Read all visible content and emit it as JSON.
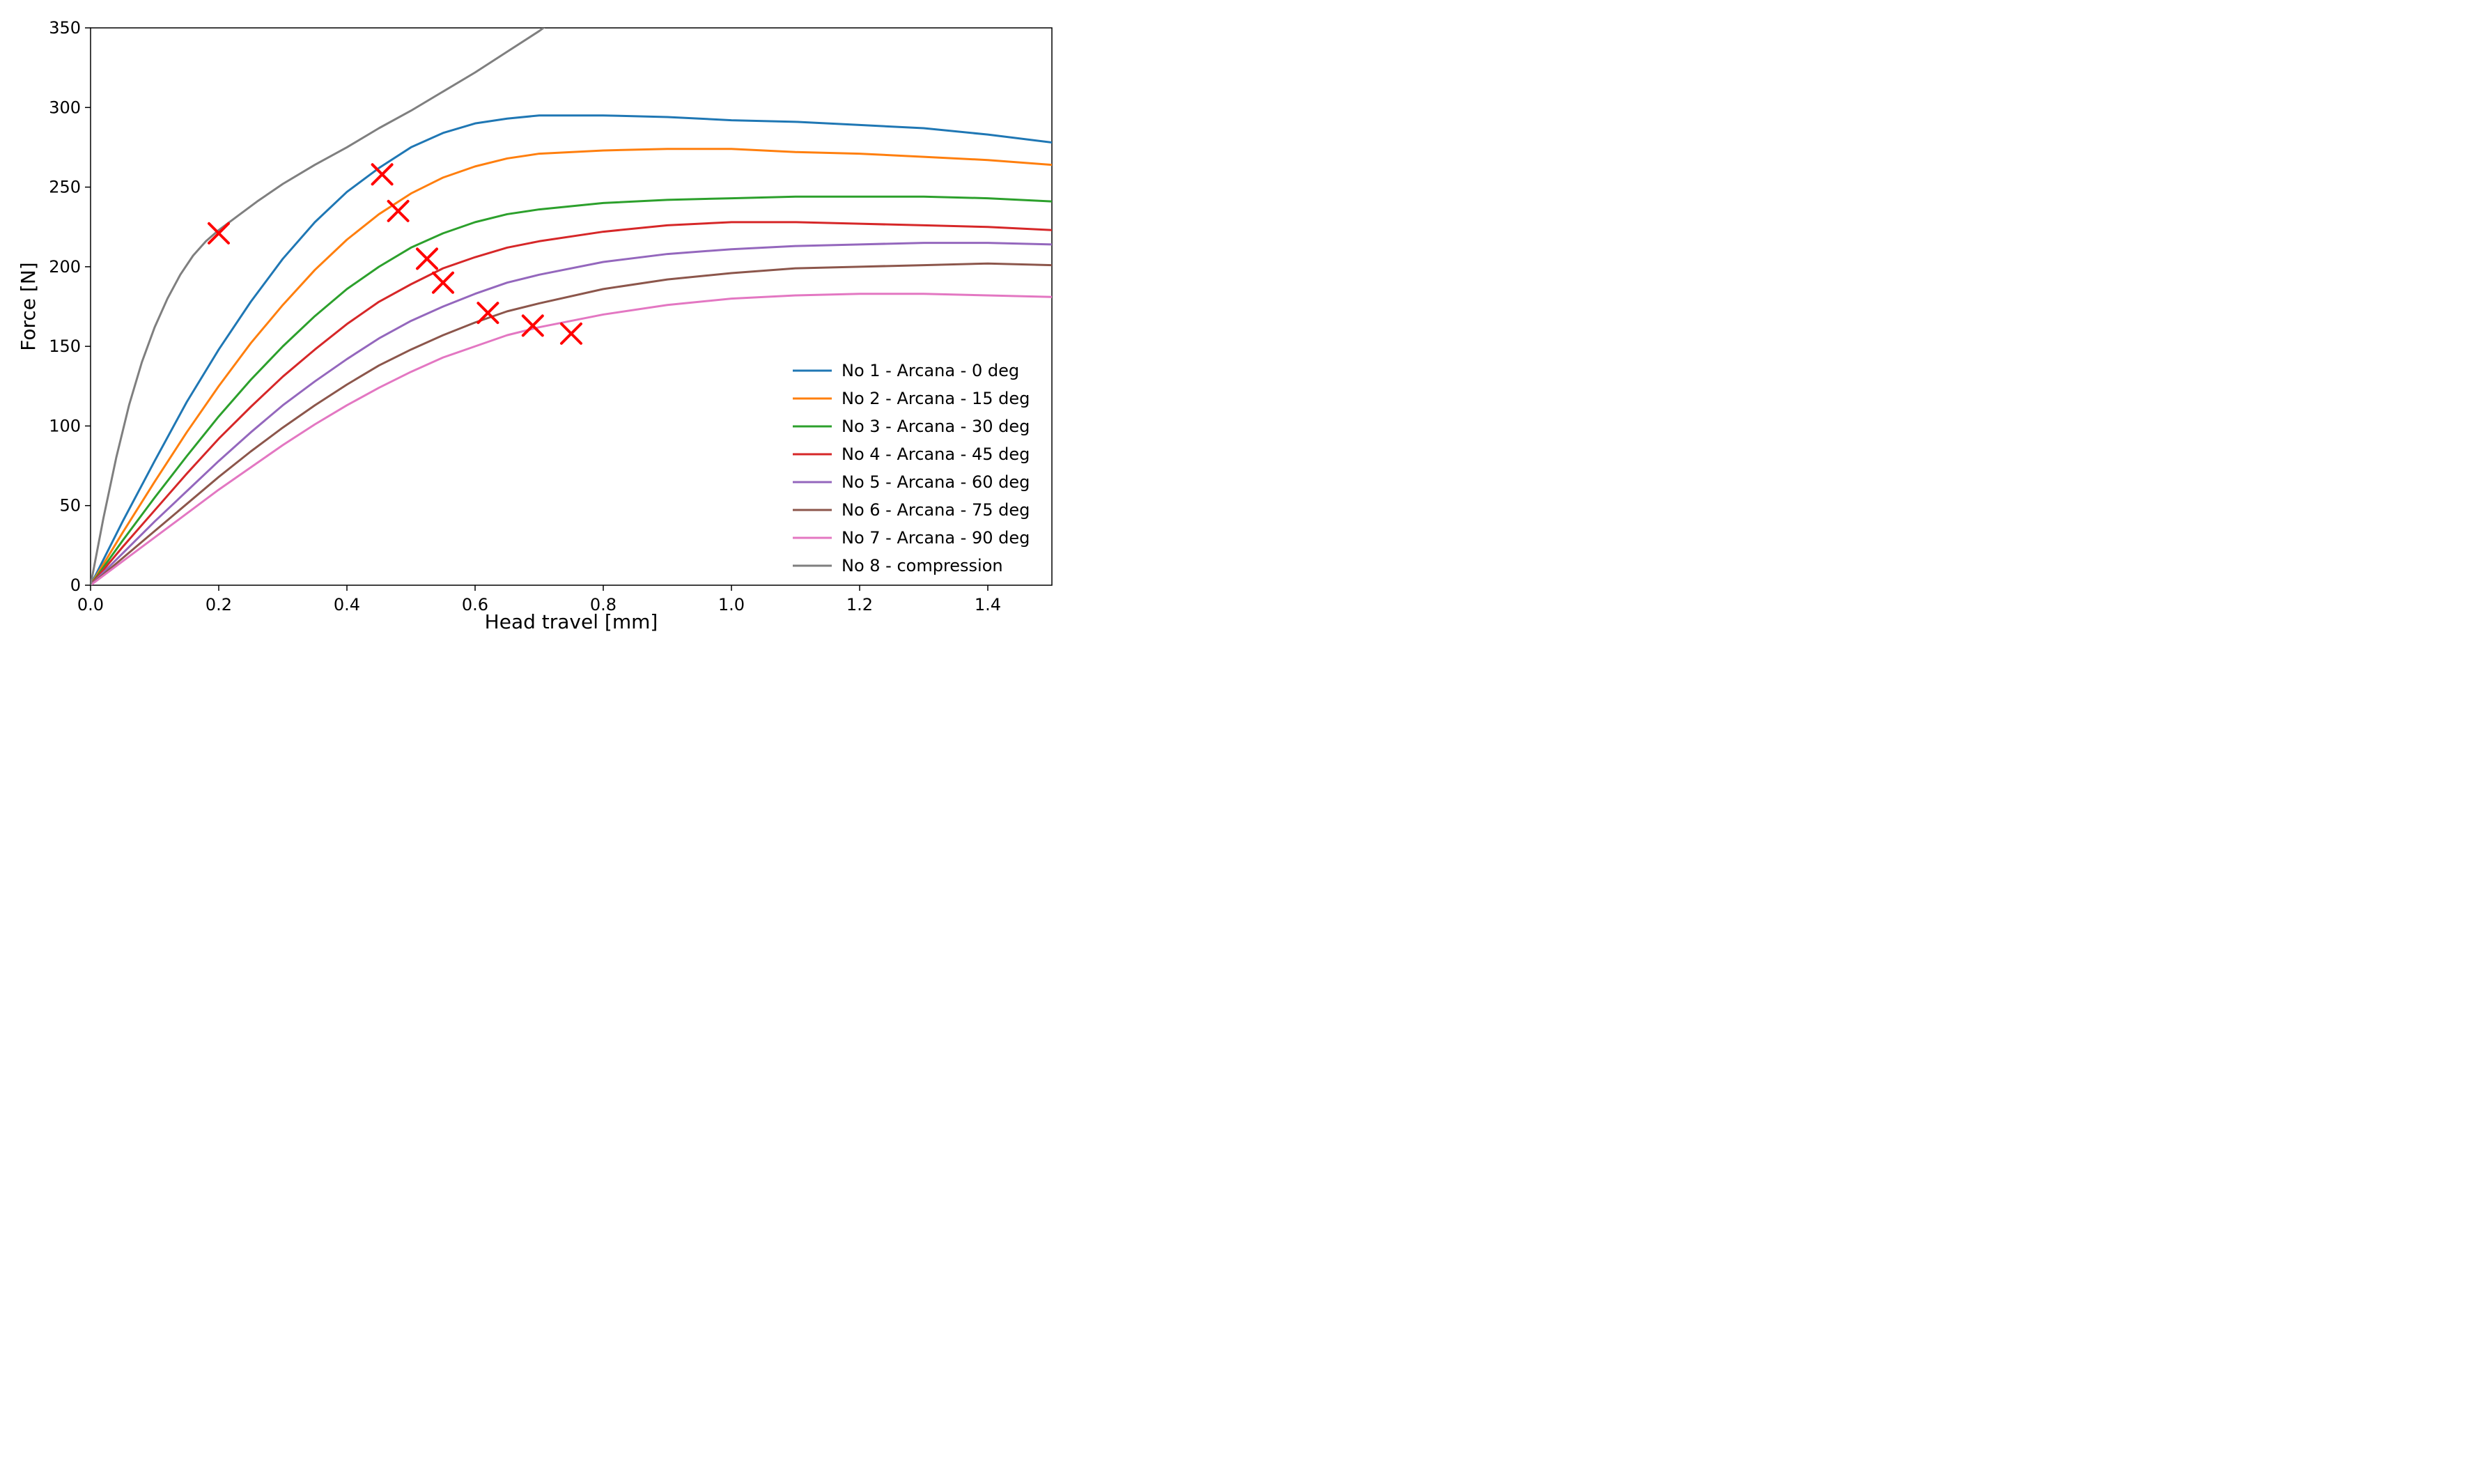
{
  "chart": {
    "type": "line",
    "background_color": "#ffffff",
    "xlim": [
      0.0,
      1.5
    ],
    "ylim": [
      0,
      350
    ],
    "xtick_step": 0.2,
    "ytick_step": 50,
    "xticks": [
      0.0,
      0.2,
      0.4,
      0.6,
      0.8,
      1.0,
      1.2,
      1.4
    ],
    "yticks": [
      0,
      50,
      100,
      150,
      200,
      250,
      300,
      350
    ],
    "xlabel": "Head travel [mm]",
    "ylabel": "Force [N]",
    "label_fontsize": 28,
    "tick_fontsize": 24,
    "legend_fontsize": 24,
    "legend_position": "lower right",
    "axis_color": "#000000",
    "line_width": 3,
    "series": [
      {
        "label": "No 1 - Arcana - 0 deg",
        "color": "#1f77b4",
        "x": [
          0.0,
          0.05,
          0.1,
          0.15,
          0.2,
          0.25,
          0.3,
          0.35,
          0.4,
          0.45,
          0.5,
          0.55,
          0.6,
          0.65,
          0.7,
          0.8,
          0.9,
          1.0,
          1.1,
          1.2,
          1.3,
          1.4,
          1.5
        ],
        "y": [
          0,
          40,
          78,
          115,
          148,
          178,
          205,
          228,
          247,
          262,
          275,
          284,
          290,
          293,
          295,
          295,
          294,
          292,
          291,
          289,
          287,
          283,
          278
        ]
      },
      {
        "label": "No 2 - Arcana - 15 deg",
        "color": "#ff7f0e",
        "x": [
          0.0,
          0.05,
          0.1,
          0.15,
          0.2,
          0.25,
          0.3,
          0.35,
          0.4,
          0.45,
          0.5,
          0.55,
          0.6,
          0.65,
          0.7,
          0.8,
          0.9,
          1.0,
          1.1,
          1.2,
          1.3,
          1.4,
          1.5
        ],
        "y": [
          0,
          33,
          65,
          96,
          125,
          152,
          176,
          198,
          217,
          233,
          246,
          256,
          263,
          268,
          271,
          273,
          274,
          274,
          272,
          271,
          269,
          267,
          264
        ]
      },
      {
        "label": "No 3 - Arcana - 30 deg",
        "color": "#2ca02c",
        "x": [
          0.0,
          0.05,
          0.1,
          0.15,
          0.2,
          0.25,
          0.3,
          0.35,
          0.4,
          0.45,
          0.5,
          0.55,
          0.6,
          0.65,
          0.7,
          0.8,
          0.9,
          1.0,
          1.1,
          1.2,
          1.3,
          1.4,
          1.5
        ],
        "y": [
          0,
          28,
          55,
          81,
          106,
          129,
          150,
          169,
          186,
          200,
          212,
          221,
          228,
          233,
          236,
          240,
          242,
          243,
          244,
          244,
          244,
          243,
          241
        ]
      },
      {
        "label": "No 4 - Arcana - 45 deg",
        "color": "#d62728",
        "x": [
          0.0,
          0.05,
          0.1,
          0.15,
          0.2,
          0.25,
          0.3,
          0.35,
          0.4,
          0.45,
          0.5,
          0.55,
          0.6,
          0.65,
          0.7,
          0.8,
          0.9,
          1.0,
          1.1,
          1.2,
          1.3,
          1.4,
          1.5
        ],
        "y": [
          0,
          24,
          47,
          70,
          92,
          112,
          131,
          148,
          164,
          178,
          189,
          199,
          206,
          212,
          216,
          222,
          226,
          228,
          228,
          227,
          226,
          225,
          223
        ]
      },
      {
        "label": "No 5 - Arcana - 60 deg",
        "color": "#9467bd",
        "x": [
          0.0,
          0.05,
          0.1,
          0.15,
          0.2,
          0.25,
          0.3,
          0.35,
          0.4,
          0.45,
          0.5,
          0.55,
          0.6,
          0.65,
          0.7,
          0.8,
          0.9,
          1.0,
          1.1,
          1.2,
          1.3,
          1.4,
          1.5
        ],
        "y": [
          0,
          20,
          40,
          59,
          78,
          96,
          113,
          128,
          142,
          155,
          166,
          175,
          183,
          190,
          195,
          203,
          208,
          211,
          213,
          214,
          215,
          215,
          214
        ]
      },
      {
        "label": "No 6 - Arcana - 75 deg",
        "color": "#8c564b",
        "x": [
          0.0,
          0.05,
          0.1,
          0.15,
          0.2,
          0.25,
          0.3,
          0.35,
          0.4,
          0.45,
          0.5,
          0.55,
          0.6,
          0.65,
          0.7,
          0.8,
          0.9,
          1.0,
          1.1,
          1.2,
          1.3,
          1.4,
          1.5
        ],
        "y": [
          0,
          17,
          34,
          51,
          68,
          84,
          99,
          113,
          126,
          138,
          148,
          157,
          165,
          172,
          177,
          186,
          192,
          196,
          199,
          200,
          201,
          202,
          201
        ]
      },
      {
        "label": "No 7 - Arcana - 90 deg",
        "color": "#e377c2",
        "x": [
          0.0,
          0.05,
          0.1,
          0.15,
          0.2,
          0.25,
          0.3,
          0.35,
          0.4,
          0.45,
          0.5,
          0.55,
          0.6,
          0.65,
          0.7,
          0.8,
          0.9,
          1.0,
          1.1,
          1.2,
          1.3,
          1.4,
          1.5
        ],
        "y": [
          0,
          15,
          30,
          45,
          60,
          74,
          88,
          101,
          113,
          124,
          134,
          143,
          150,
          157,
          162,
          170,
          176,
          180,
          182,
          183,
          183,
          182,
          181
        ]
      },
      {
        "label": "No 8 - compression",
        "color": "#7f7f7f",
        "x": [
          0.0,
          0.02,
          0.04,
          0.06,
          0.08,
          0.1,
          0.12,
          0.14,
          0.16,
          0.18,
          0.2,
          0.23,
          0.26,
          0.3,
          0.35,
          0.4,
          0.45,
          0.5,
          0.55,
          0.6,
          0.65,
          0.7,
          0.74
        ],
        "y": [
          0,
          42,
          80,
          113,
          140,
          162,
          180,
          195,
          207,
          216,
          223,
          232,
          241,
          252,
          264,
          275,
          287,
          298,
          310,
          322,
          335,
          348,
          360
        ]
      }
    ],
    "markers": {
      "symbol": "x",
      "color": "#ff0000",
      "size": 14,
      "line_width": 4,
      "points": [
        {
          "x": 0.2,
          "y": 221
        },
        {
          "x": 0.455,
          "y": 258
        },
        {
          "x": 0.48,
          "y": 235
        },
        {
          "x": 0.525,
          "y": 205
        },
        {
          "x": 0.55,
          "y": 190
        },
        {
          "x": 0.62,
          "y": 171
        },
        {
          "x": 0.69,
          "y": 163
        },
        {
          "x": 0.75,
          "y": 158
        }
      ]
    }
  }
}
